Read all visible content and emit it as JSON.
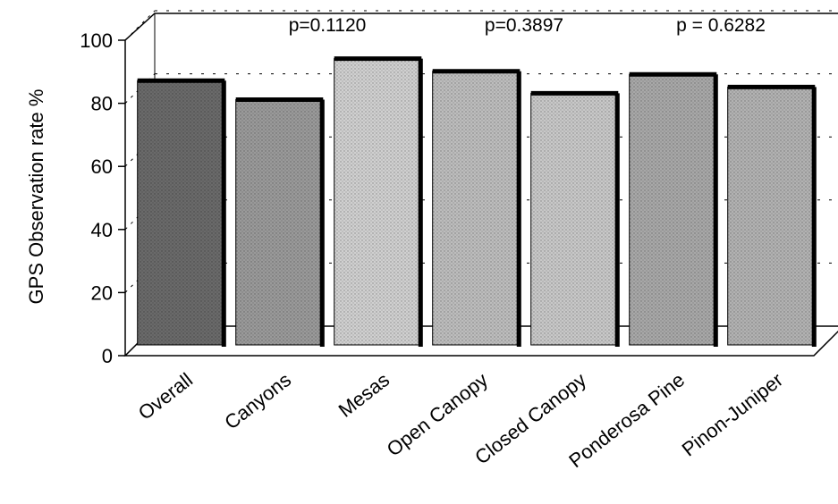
{
  "chart_data": {
    "type": "bar",
    "title": "",
    "xlabel": "",
    "ylabel": "GPS Observation rate %",
    "ylim": [
      0,
      100
    ],
    "yticks": [
      0,
      20,
      40,
      60,
      80,
      100
    ],
    "categories": [
      "Overall",
      "Canyons",
      "Mesas",
      "Open Canopy",
      "Closed Canopy",
      "Ponderosa Pine",
      "Pinon-Juniper"
    ],
    "values": [
      90,
      84,
      97,
      93,
      86,
      92,
      88
    ],
    "annotations": [
      {
        "text": "p=0.1120",
        "between": [
          "Canyons",
          "Mesas"
        ]
      },
      {
        "text": "p=0.3897",
        "between": [
          "Open Canopy",
          "Closed Canopy"
        ]
      },
      {
        "text": "p = 0.6282",
        "between": [
          "Ponderosa Pine",
          "Pinon-Juniper"
        ]
      }
    ],
    "grid": true,
    "style": "3d-box",
    "bar_fills": [
      "#6a6a6a",
      "#9a9a9a",
      "#d0d0d0",
      "#bdbdbd",
      "#c8c8c8",
      "#a8a8a8",
      "#b2b2b2"
    ]
  }
}
